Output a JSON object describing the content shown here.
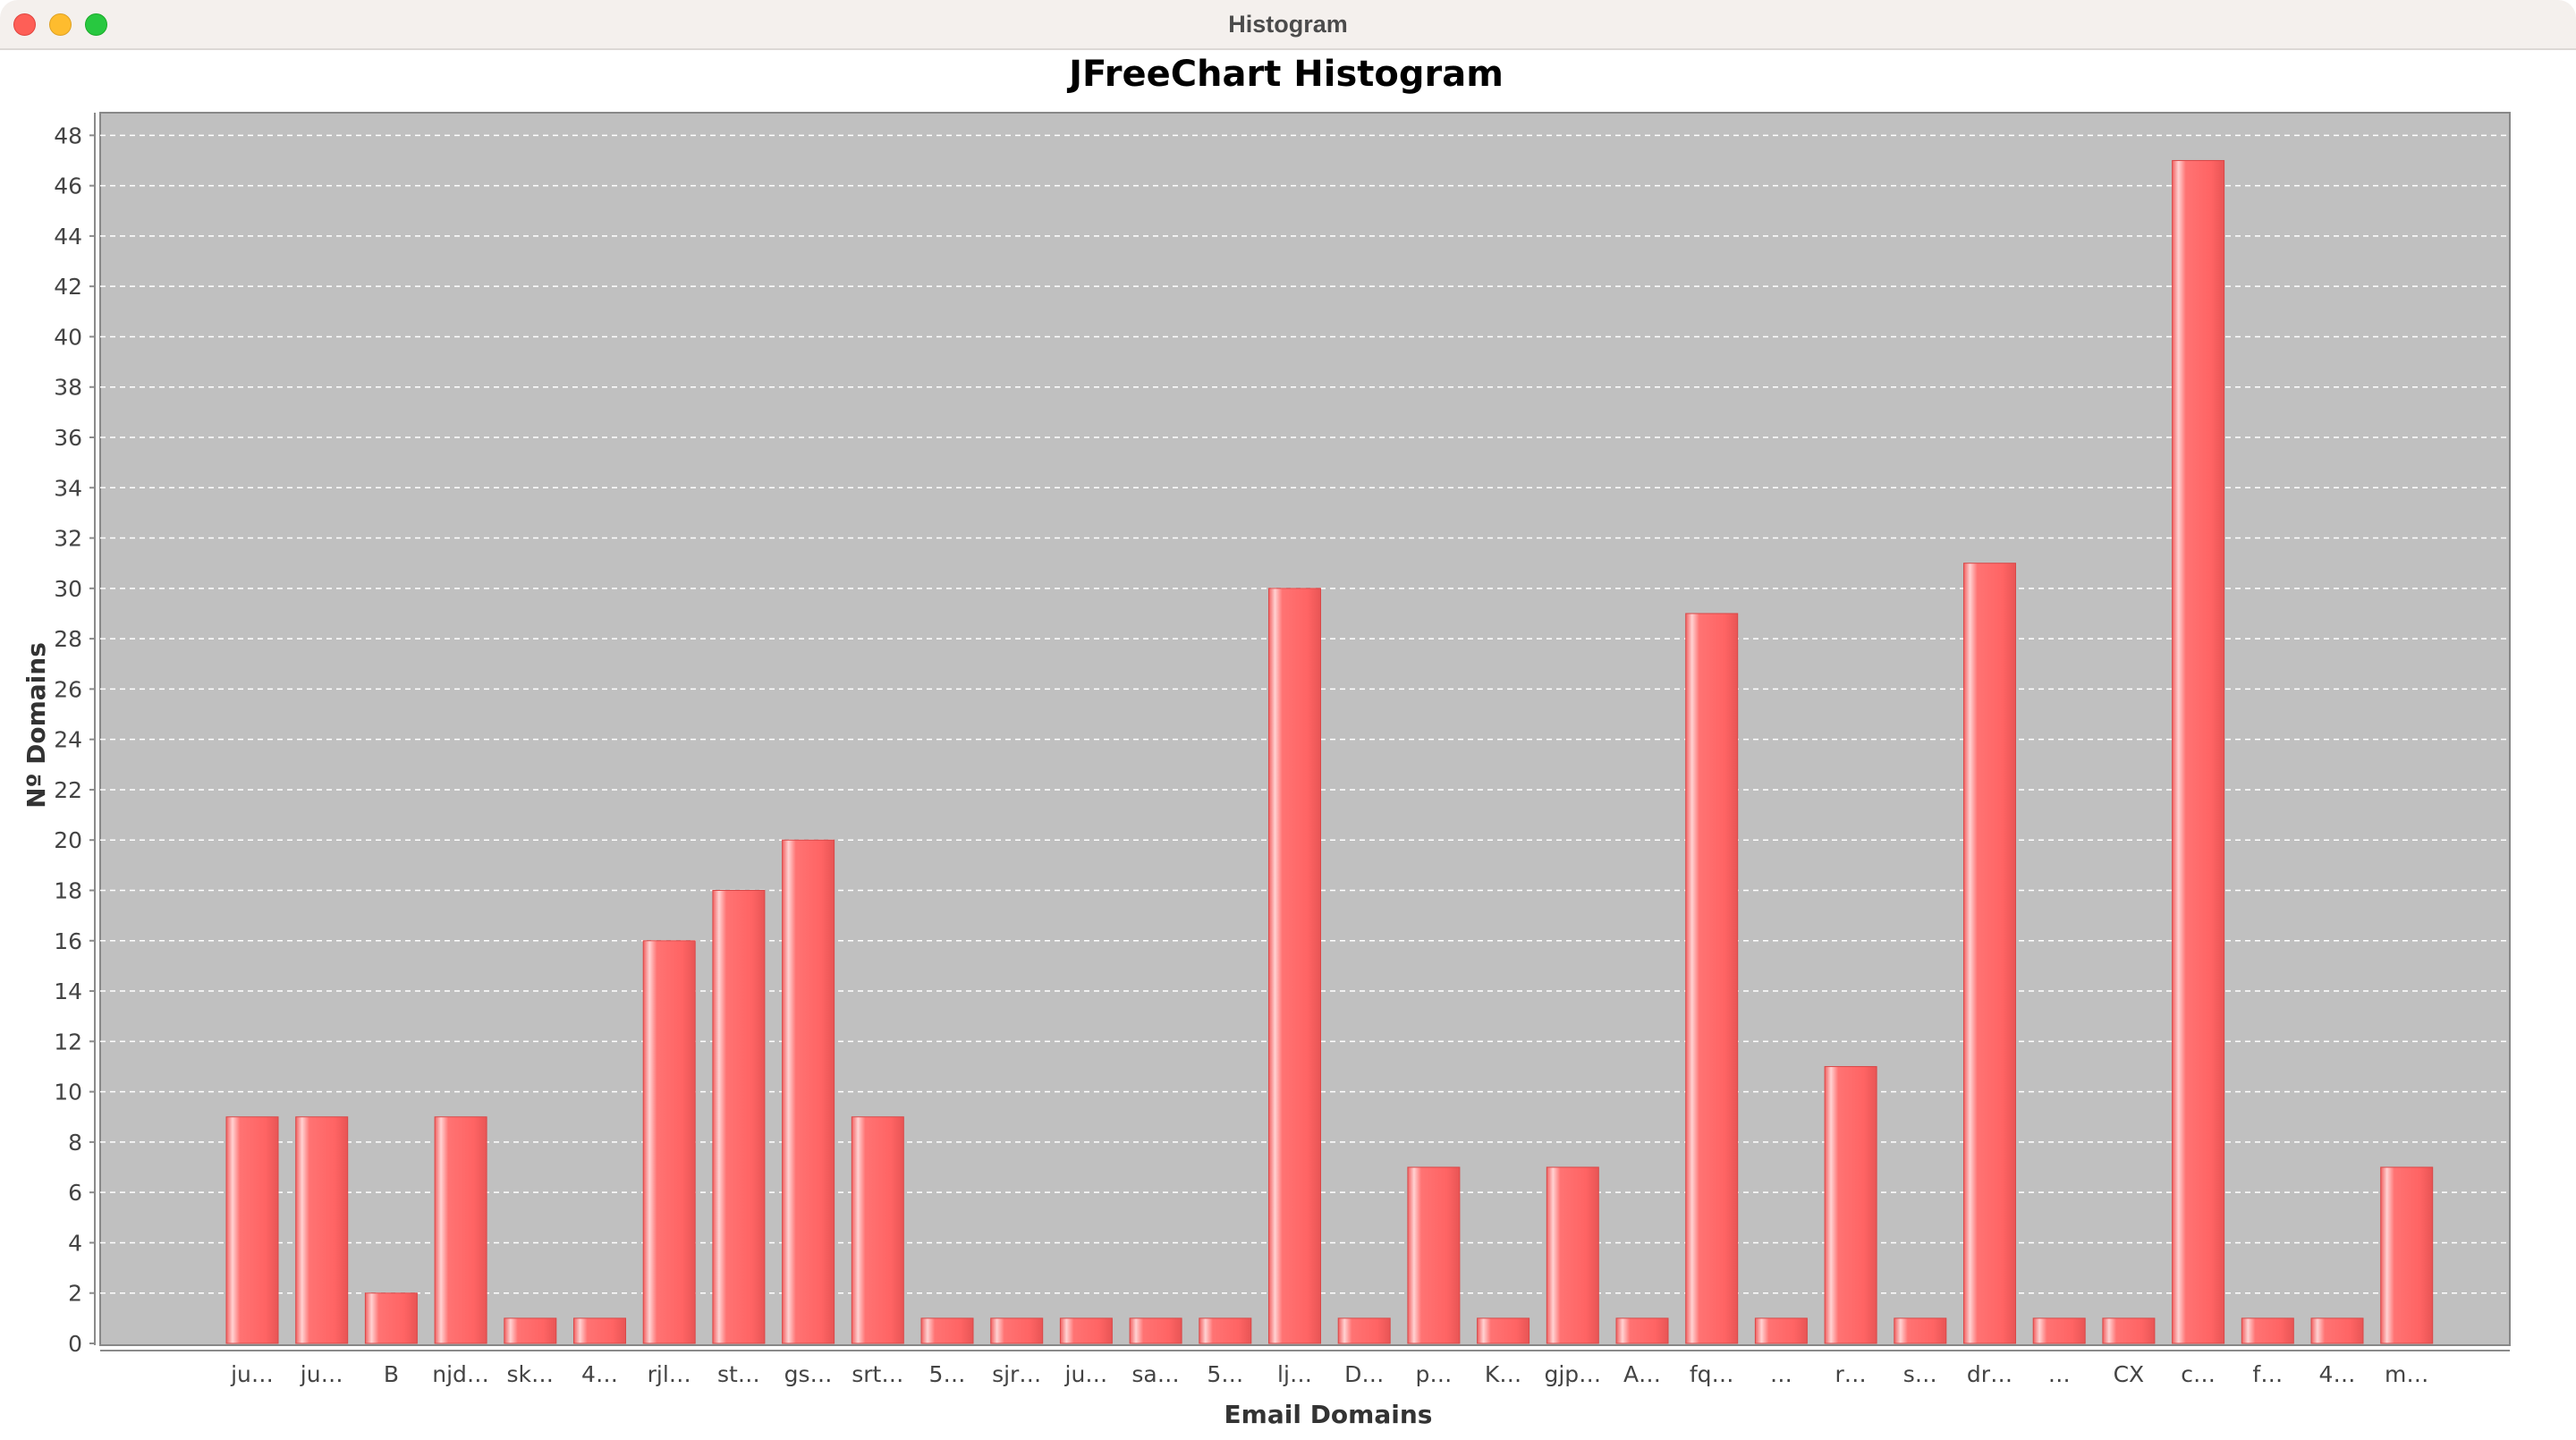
{
  "window": {
    "title": "Histogram"
  },
  "chart_data": {
    "type": "bar",
    "title": "JFreeChart Histogram",
    "xlabel": "Email Domains",
    "ylabel": "Nº Domains",
    "categories": [
      "ju…",
      "ju…",
      "B",
      "njd…",
      "sk…",
      "4…",
      "rjl…",
      "st…",
      "gs…",
      "srt…",
      "5…",
      "sjr…",
      "ju…",
      "sa…",
      "5…",
      "lj…",
      "D…",
      "p…",
      "K…",
      "gjp…",
      "A…",
      "fq…",
      "…",
      "r…",
      "s…",
      "dr…",
      "…",
      "CX",
      "c…",
      "f…",
      "4…",
      "m…"
    ],
    "values": [
      9,
      9,
      2,
      9,
      1,
      1,
      16,
      18,
      20,
      9,
      1,
      1,
      1,
      1,
      1,
      30,
      1,
      7,
      1,
      7,
      1,
      29,
      1,
      11,
      1,
      31,
      1,
      1,
      47,
      1,
      1,
      7
    ],
    "ylim": [
      0,
      48.9
    ],
    "yticks": [
      0,
      2,
      4,
      6,
      8,
      10,
      12,
      14,
      16,
      18,
      20,
      22,
      24,
      26,
      28,
      30,
      32,
      34,
      36,
      38,
      40,
      42,
      44,
      46,
      48
    ],
    "grid": true,
    "colors": {
      "bar": "#ff6b6b",
      "plot_background": "#c0c0c0",
      "gridline": "#ffffff"
    }
  }
}
